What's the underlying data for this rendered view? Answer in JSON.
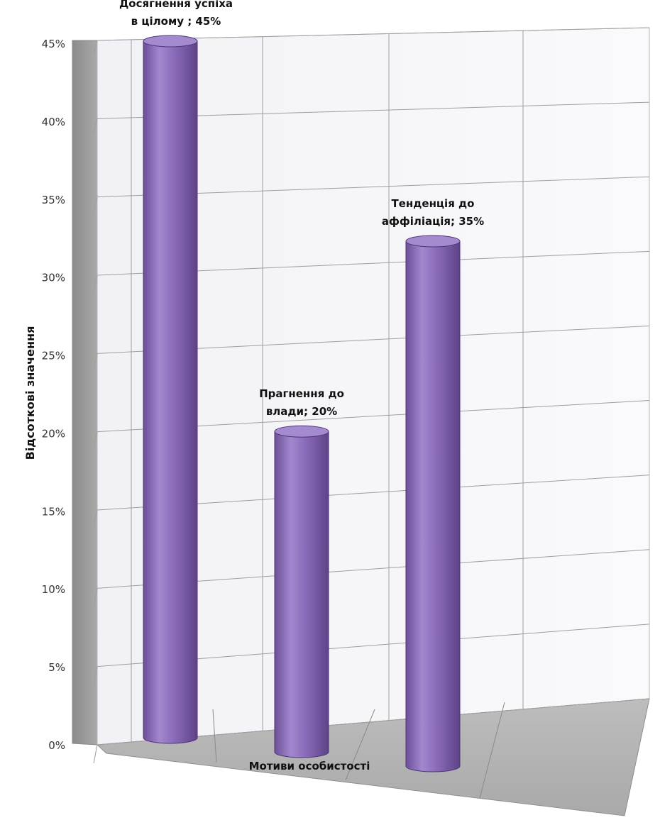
{
  "chart_data": {
    "type": "bar",
    "style": "3d-cylinder",
    "xlabel": "Мотиви особистості",
    "ylabel": "Відсоткові значення",
    "ylim": [
      0,
      45
    ],
    "yticks": [
      "0%",
      "5%",
      "10%",
      "15%",
      "20%",
      "25%",
      "30%",
      "35%",
      "40%",
      "45%"
    ],
    "grid": true,
    "bar_color": "#8a6bb8",
    "series": [
      {
        "values": [
          45,
          20,
          35
        ],
        "data_labels": [
          [
            "Досягнення успіха",
            "в цілому ; 45%"
          ],
          [
            "Прагнення до",
            "влади; 20%"
          ],
          [
            "Тенденція до",
            "аффіліація; 35%"
          ]
        ]
      }
    ]
  }
}
